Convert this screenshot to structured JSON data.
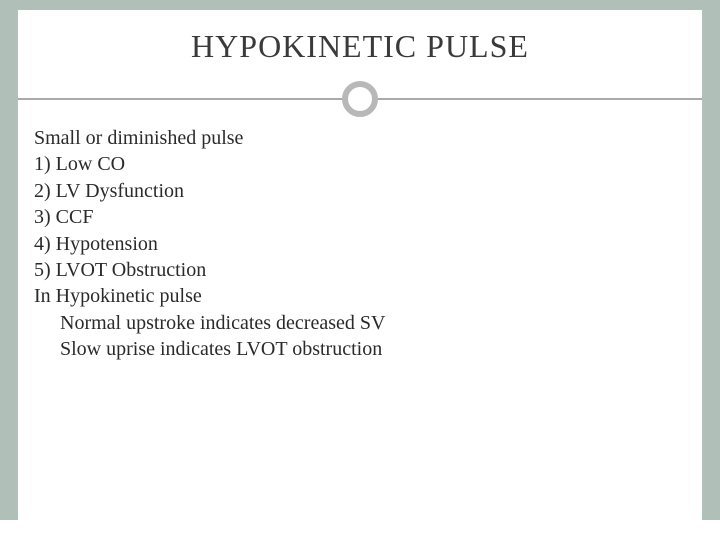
{
  "colors": {
    "page_bg": "#b0bfb7",
    "slide_bg": "#ffffff",
    "title_color": "#3a3a3a",
    "text_color": "#2a2a2a",
    "divider_line": "#aaaaaa",
    "divider_ring": "#b8b8b8"
  },
  "typography": {
    "title_fontsize": 32,
    "body_fontsize": 20,
    "font_family": "Georgia"
  },
  "title": "HYPOKINETIC PULSE",
  "lines": {
    "l0": "Small or diminished pulse",
    "l1": "1) Low CO",
    "l2": "2) LV Dysfunction",
    "l3": "3) CCF",
    "l4": "4) Hypotension",
    "l5": "5) LVOT Obstruction",
    "l6": "In Hypokinetic pulse",
    "l7": "Normal upstroke indicates decreased SV",
    "l8": "Slow uprise indicates LVOT obstruction"
  }
}
